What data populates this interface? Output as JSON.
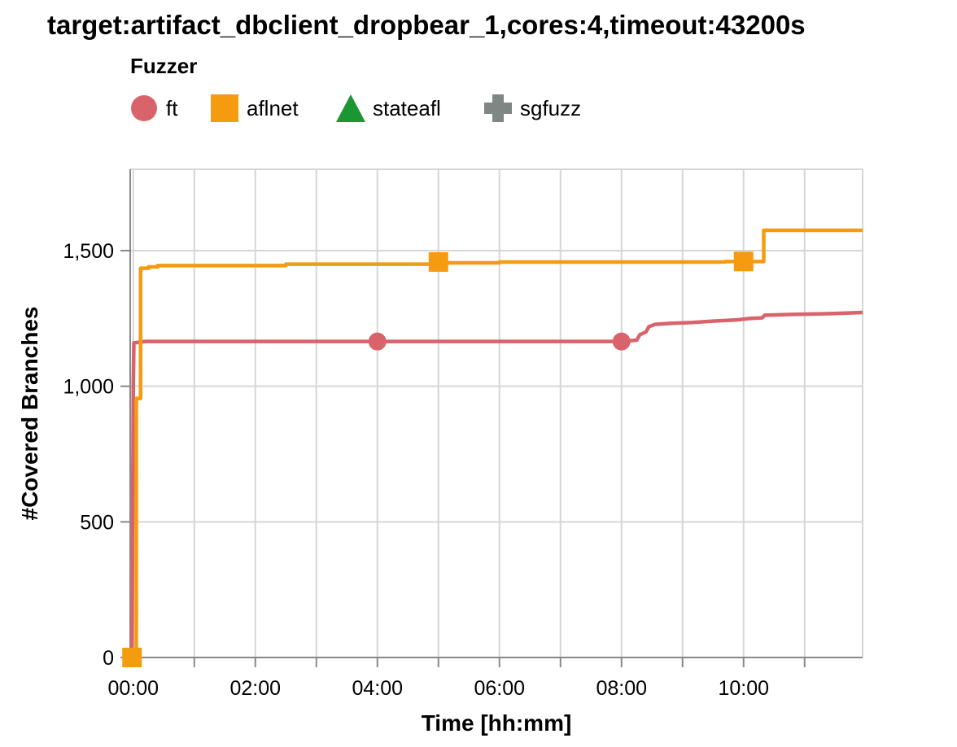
{
  "chart_data": {
    "type": "line",
    "title": "target:artifact_dbclient_dropbear_1,cores:4,timeout:43200s",
    "xlabel": "Time [hh:mm]",
    "ylabel": "#Covered Branches",
    "x_unit": "hours",
    "xlim": [
      -0.05,
      11.95
    ],
    "ylim": [
      0,
      1800
    ],
    "x_tick_labels": [
      "00:00",
      "02:00",
      "04:00",
      "06:00",
      "08:00",
      "10:00"
    ],
    "x_ticks": [
      0,
      2,
      4,
      6,
      8,
      10
    ],
    "x_minor_ticks": [
      1,
      3,
      5,
      7,
      9,
      11
    ],
    "y_ticks": [
      0,
      500,
      1000,
      1500
    ],
    "y_tick_labels": [
      "0",
      "500",
      "1,000",
      "1,500"
    ],
    "grid": true,
    "legend": {
      "title": "Fuzzer",
      "placement": "top-left",
      "entries": [
        {
          "name": "ft",
          "color": "#d9636b",
          "marker": "circle"
        },
        {
          "name": "aflnet",
          "color": "#f59b0f",
          "marker": "square"
        },
        {
          "name": "stateafl",
          "color": "#1a9632",
          "marker": "triangle"
        },
        {
          "name": "sgfuzz",
          "color": "#7f8683",
          "marker": "cross"
        }
      ]
    },
    "series": [
      {
        "name": "ft",
        "color": "#d9636b",
        "marker": "circle",
        "step": false,
        "points": [
          [
            -0.02,
            0
          ],
          [
            -0.01,
            500
          ],
          [
            0.0,
            1000
          ],
          [
            0.01,
            1160
          ],
          [
            0.2,
            1165
          ],
          [
            2.0,
            1165
          ],
          [
            4.0,
            1165
          ],
          [
            6.0,
            1165
          ],
          [
            8.0,
            1165
          ],
          [
            8.25,
            1170
          ],
          [
            8.3,
            1190
          ],
          [
            8.4,
            1200
          ],
          [
            8.45,
            1220
          ],
          [
            8.55,
            1228
          ],
          [
            8.8,
            1232
          ],
          [
            9.15,
            1235
          ],
          [
            9.5,
            1240
          ],
          [
            9.9,
            1245
          ],
          [
            10.1,
            1250
          ],
          [
            10.3,
            1252
          ],
          [
            10.35,
            1262
          ],
          [
            10.8,
            1265
          ],
          [
            11.45,
            1268
          ],
          [
            11.95,
            1272
          ]
        ],
        "markers": [
          [
            4.0,
            1165
          ],
          [
            8.0,
            1165
          ]
        ]
      },
      {
        "name": "aflnet",
        "color": "#f59b0f",
        "marker": "square",
        "step": true,
        "points": [
          [
            -0.02,
            0
          ],
          [
            0.05,
            955
          ],
          [
            0.12,
            955
          ],
          [
            0.12,
            1435
          ],
          [
            0.25,
            1440
          ],
          [
            0.4,
            1445
          ],
          [
            2.5,
            1450
          ],
          [
            5.0,
            1455
          ],
          [
            6.0,
            1458
          ],
          [
            9.7,
            1460
          ],
          [
            10.3,
            1460
          ],
          [
            10.33,
            1575
          ],
          [
            11.95,
            1575
          ]
        ],
        "markers": [
          [
            -0.02,
            0
          ],
          [
            5.0,
            1458
          ],
          [
            10.0,
            1460
          ]
        ]
      }
    ]
  }
}
